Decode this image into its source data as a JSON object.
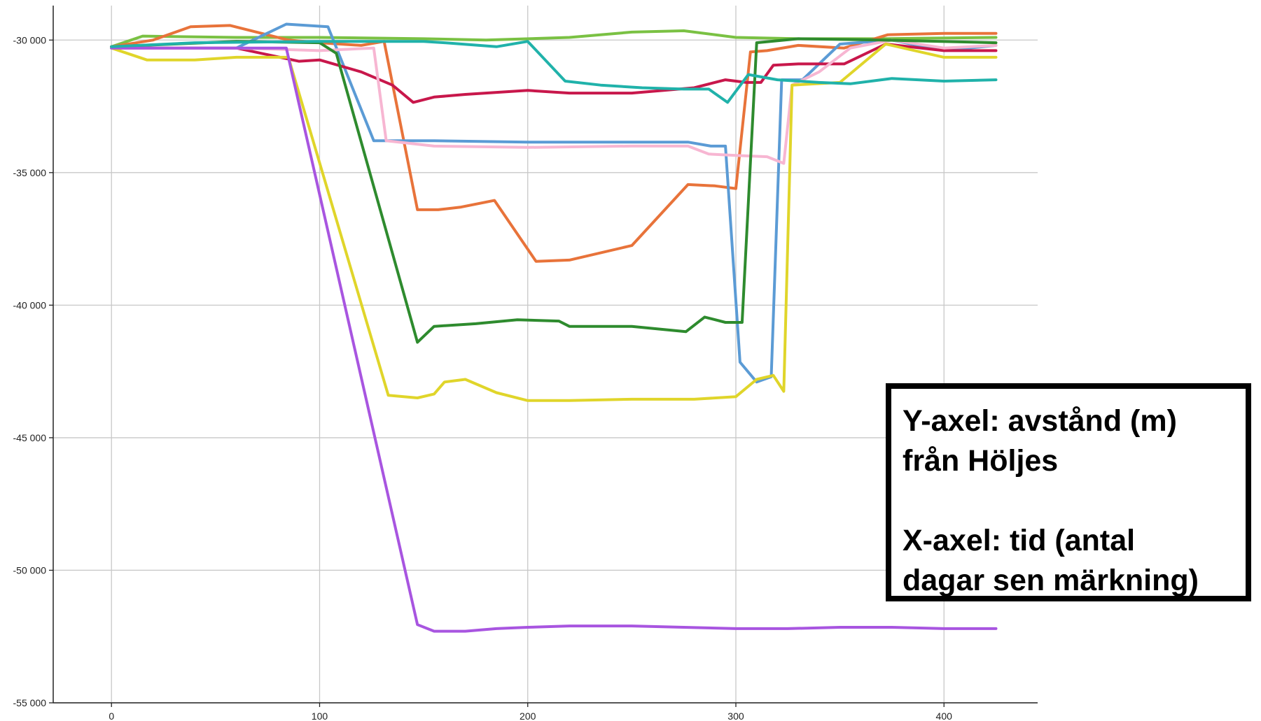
{
  "chart_data": {
    "type": "line",
    "title": "",
    "xlabel": "",
    "ylabel": "",
    "xlim": [
      -28,
      445
    ],
    "ylim": [
      -55000,
      -28700
    ],
    "x_ticks": [
      0,
      100,
      200,
      300,
      400
    ],
    "x_tick_labels": [
      "0",
      "100",
      "200",
      "300",
      "400"
    ],
    "y_ticks": [
      -30000,
      -35000,
      -40000,
      -45000,
      -50000,
      -55000
    ],
    "y_tick_labels": [
      "-30 000",
      "-35 000",
      "-40 000",
      "-45 000",
      "-50 000",
      "-55 000"
    ],
    "grid": true,
    "annotation": {
      "line1": "Y-axel: avstånd (m)",
      "line2": "från Höljes",
      "line3": "X-axel: tid (antal",
      "line4": "dagar sen märkning)"
    },
    "series": [
      {
        "color": "#7ac143",
        "points": [
          [
            0,
            -30250
          ],
          [
            15,
            -29850
          ],
          [
            60,
            -29900
          ],
          [
            100,
            -29900
          ],
          [
            150,
            -29950
          ],
          [
            180,
            -30000
          ],
          [
            220,
            -29900
          ],
          [
            250,
            -29700
          ],
          [
            275,
            -29650
          ],
          [
            300,
            -29900
          ],
          [
            330,
            -29950
          ],
          [
            370,
            -29950
          ],
          [
            425,
            -29900
          ]
        ]
      },
      {
        "color": "#e8733a",
        "points": [
          [
            0,
            -30250
          ],
          [
            20,
            -30000
          ],
          [
            38,
            -29500
          ],
          [
            57,
            -29450
          ],
          [
            85,
            -30000
          ],
          [
            100,
            -30100
          ],
          [
            120,
            -30200
          ],
          [
            131,
            -30050
          ],
          [
            147,
            -36400
          ],
          [
            157,
            -36400
          ],
          [
            168,
            -36300
          ],
          [
            184,
            -36050
          ],
          [
            204,
            -38350
          ],
          [
            220,
            -38300
          ],
          [
            250,
            -37750
          ],
          [
            277,
            -35450
          ],
          [
            290,
            -35500
          ],
          [
            300,
            -35600
          ],
          [
            307,
            -30450
          ],
          [
            315,
            -30400
          ],
          [
            330,
            -30200
          ],
          [
            352,
            -30300
          ],
          [
            373,
            -29800
          ],
          [
            400,
            -29750
          ],
          [
            425,
            -29750
          ]
        ]
      },
      {
        "color": "#5b9bd5",
        "points": [
          [
            0,
            -30300
          ],
          [
            30,
            -30300
          ],
          [
            60,
            -30300
          ],
          [
            84,
            -29400
          ],
          [
            104,
            -29500
          ],
          [
            126,
            -33800
          ],
          [
            155,
            -33800
          ],
          [
            200,
            -33850
          ],
          [
            250,
            -33850
          ],
          [
            277,
            -33850
          ],
          [
            288,
            -34000
          ],
          [
            295,
            -34000
          ],
          [
            302,
            -42150
          ],
          [
            310,
            -42900
          ],
          [
            317,
            -42700
          ],
          [
            322,
            -31500
          ],
          [
            332,
            -31500
          ],
          [
            350,
            -30150
          ],
          [
            375,
            -30000
          ],
          [
            400,
            -30400
          ],
          [
            425,
            -30200
          ]
        ]
      },
      {
        "color": "#c8174b",
        "points": [
          [
            0,
            -30300
          ],
          [
            60,
            -30300
          ],
          [
            90,
            -30800
          ],
          [
            100,
            -30750
          ],
          [
            120,
            -31200
          ],
          [
            135,
            -31700
          ],
          [
            145,
            -32350
          ],
          [
            155,
            -32150
          ],
          [
            170,
            -32050
          ],
          [
            200,
            -31900
          ],
          [
            220,
            -32000
          ],
          [
            250,
            -32000
          ],
          [
            280,
            -31800
          ],
          [
            295,
            -31500
          ],
          [
            305,
            -31600
          ],
          [
            312,
            -31600
          ],
          [
            318,
            -30950
          ],
          [
            330,
            -30900
          ],
          [
            352,
            -30900
          ],
          [
            372,
            -30150
          ],
          [
            400,
            -30400
          ],
          [
            425,
            -30400
          ]
        ]
      },
      {
        "color": "#f7b6d2",
        "points": [
          [
            0,
            -30300
          ],
          [
            60,
            -30300
          ],
          [
            100,
            -30400
          ],
          [
            126,
            -30300
          ],
          [
            132,
            -33800
          ],
          [
            155,
            -34000
          ],
          [
            200,
            -34050
          ],
          [
            250,
            -34000
          ],
          [
            277,
            -34000
          ],
          [
            287,
            -34300
          ],
          [
            300,
            -34350
          ],
          [
            315,
            -34400
          ],
          [
            323,
            -34650
          ],
          [
            327,
            -31700
          ],
          [
            340,
            -31200
          ],
          [
            355,
            -30300
          ],
          [
            375,
            -30000
          ],
          [
            400,
            -30300
          ],
          [
            425,
            -30200
          ]
        ]
      },
      {
        "color": "#2e8b2e",
        "points": [
          [
            0,
            -30250
          ],
          [
            60,
            -30050
          ],
          [
            100,
            -30100
          ],
          [
            108,
            -30500
          ],
          [
            147,
            -41400
          ],
          [
            155,
            -40800
          ],
          [
            175,
            -40700
          ],
          [
            195,
            -40550
          ],
          [
            215,
            -40600
          ],
          [
            220,
            -40800
          ],
          [
            250,
            -40800
          ],
          [
            276,
            -41000
          ],
          [
            285,
            -40450
          ],
          [
            295,
            -40650
          ],
          [
            303,
            -40650
          ],
          [
            310,
            -30100
          ],
          [
            330,
            -29950
          ],
          [
            370,
            -30000
          ],
          [
            425,
            -30100
          ]
        ]
      },
      {
        "color": "#e0d52a",
        "points": [
          [
            0,
            -30300
          ],
          [
            17,
            -30750
          ],
          [
            40,
            -30750
          ],
          [
            60,
            -30650
          ],
          [
            85,
            -30650
          ],
          [
            133,
            -43400
          ],
          [
            147,
            -43500
          ],
          [
            155,
            -43350
          ],
          [
            160,
            -42900
          ],
          [
            170,
            -42800
          ],
          [
            185,
            -43300
          ],
          [
            200,
            -43600
          ],
          [
            220,
            -43600
          ],
          [
            250,
            -43550
          ],
          [
            280,
            -43550
          ],
          [
            300,
            -43450
          ],
          [
            310,
            -42800
          ],
          [
            318,
            -42650
          ],
          [
            323,
            -43250
          ],
          [
            327,
            -31700
          ],
          [
            350,
            -31600
          ],
          [
            372,
            -30150
          ],
          [
            400,
            -30650
          ],
          [
            425,
            -30650
          ]
        ]
      },
      {
        "color": "#a855e0",
        "points": [
          [
            0,
            -30300
          ],
          [
            84,
            -30300
          ],
          [
            147,
            -52050
          ],
          [
            155,
            -52300
          ],
          [
            170,
            -52300
          ],
          [
            185,
            -52200
          ],
          [
            200,
            -52150
          ],
          [
            220,
            -52100
          ],
          [
            250,
            -52100
          ],
          [
            275,
            -52150
          ],
          [
            300,
            -52200
          ],
          [
            325,
            -52200
          ],
          [
            350,
            -52150
          ],
          [
            375,
            -52150
          ],
          [
            400,
            -52200
          ],
          [
            425,
            -52200
          ]
        ]
      },
      {
        "color": "#20b2aa",
        "points": [
          [
            0,
            -30250
          ],
          [
            40,
            -30100
          ],
          [
            100,
            -30050
          ],
          [
            150,
            -30050
          ],
          [
            160,
            -30100
          ],
          [
            185,
            -30250
          ],
          [
            200,
            -30050
          ],
          [
            218,
            -31550
          ],
          [
            235,
            -31700
          ],
          [
            255,
            -31800
          ],
          [
            275,
            -31850
          ],
          [
            287,
            -31850
          ],
          [
            296,
            -32350
          ],
          [
            306,
            -31300
          ],
          [
            320,
            -31500
          ],
          [
            340,
            -31600
          ],
          [
            355,
            -31650
          ],
          [
            375,
            -31450
          ],
          [
            400,
            -31550
          ],
          [
            425,
            -31500
          ]
        ]
      }
    ]
  }
}
